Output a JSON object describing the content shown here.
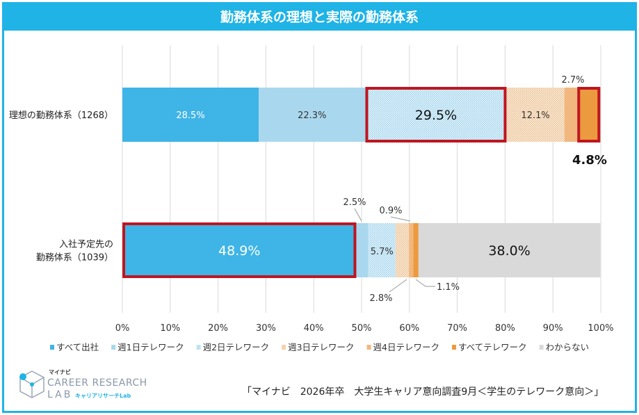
{
  "chart_data": {
    "type": "bar",
    "orientation": "horizontal",
    "stacked": true,
    "title": "勤務体系の理想と実際の勤務体系",
    "categories": [
      "理想の勤務体系（1268）",
      "入社予定先の\n勤務体系（1039）"
    ],
    "category_lines": [
      [
        "理想の勤務体系（1268）"
      ],
      [
        "入社予定先の",
        "勤務体系（1039）"
      ]
    ],
    "series": [
      {
        "name": "すべて出社",
        "values": [
          28.5,
          48.9
        ],
        "labels": [
          "28.5%",
          "48.9%"
        ],
        "color": "#3fb4e6"
      },
      {
        "name": "週1日テレワーク",
        "values": [
          22.3,
          2.5
        ],
        "labels": [
          "22.3%",
          "2.5%"
        ],
        "color": "#a9d8ee"
      },
      {
        "name": "週2日テレワーク",
        "values": [
          29.5,
          5.7
        ],
        "labels": [
          "29.5%",
          "5.7%"
        ],
        "color": "#bfe3f3",
        "pattern": "hatch-blue"
      },
      {
        "name": "週3日テレワーク",
        "values": [
          12.1,
          2.8
        ],
        "labels": [
          "12.1%",
          "2.8%"
        ],
        "color": "#f3d3ae",
        "pattern": "hatch-orange"
      },
      {
        "name": "週4日テレワーク",
        "values": [
          2.7,
          0.9
        ],
        "labels": [
          "2.7%",
          "0.9%"
        ],
        "color": "#f2b77e"
      },
      {
        "name": "すべてテレワーク",
        "values": [
          4.8,
          1.1
        ],
        "labels": [
          "4.8%",
          "1.1%"
        ],
        "color": "#ec9a3f"
      },
      {
        "name": "わからない",
        "values": [
          0.1,
          38.0
        ],
        "labels": [
          "",
          "38.0%"
        ],
        "color": "#d9d9d9"
      }
    ],
    "xlim": [
      0,
      100
    ],
    "xticks": [
      "0%",
      "10%",
      "20%",
      "30%",
      "40%",
      "50%",
      "60%",
      "70%",
      "80%",
      "90%",
      "100%"
    ],
    "grid": true,
    "legend": "bottom",
    "highlight_color": "#c0151f"
  },
  "logo": {
    "small": "マイナビ",
    "main": "CAREER RESEARCH",
    "lab": "LAB",
    "sub": "キャリアリサーチLab"
  },
  "source": "「マイナビ　2026年卒　大学生キャリア意向調査9月＜学生のテレワーク意向＞」"
}
